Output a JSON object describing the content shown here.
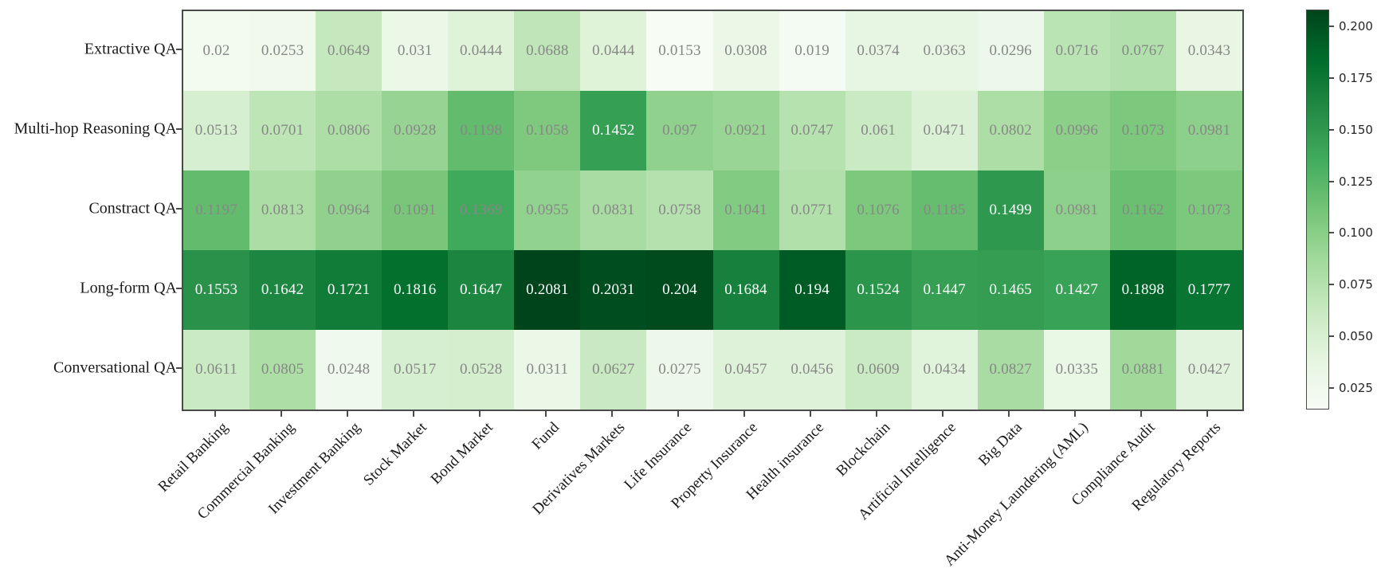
{
  "chart_data": {
    "type": "heatmap",
    "title": "",
    "rows": [
      "Extractive QA",
      "Multi-hop Reasoning QA",
      "Constract QA",
      "Long-form QA",
      "Conversational QA"
    ],
    "columns": [
      "Retail Banking",
      "Commercial Banking",
      "Investment Banking",
      "Stock Market",
      "Bond Market",
      "Fund",
      "Derivatives Markets",
      "Life Insurance",
      "Property Insurance",
      "Health insurance",
      "Blockchain",
      "Artificial Intelligence",
      "Big Data",
      "Anti-Money Laundering (AML)",
      "Compliance Audit",
      "Regulatory Reports"
    ],
    "values": [
      [
        0.02,
        0.0253,
        0.0649,
        0.031,
        0.0444,
        0.0688,
        0.0444,
        0.0153,
        0.0308,
        0.019,
        0.0374,
        0.0363,
        0.0296,
        0.0716,
        0.0767,
        0.0343
      ],
      [
        0.0513,
        0.0701,
        0.0806,
        0.0928,
        0.1198,
        0.1058,
        0.1452,
        0.097,
        0.0921,
        0.0747,
        0.061,
        0.0471,
        0.0802,
        0.0996,
        0.1073,
        0.0981
      ],
      [
        0.1197,
        0.0813,
        0.0964,
        0.1091,
        0.1369,
        0.0955,
        0.0831,
        0.0758,
        0.1041,
        0.0771,
        0.1076,
        0.1185,
        0.1499,
        0.0981,
        0.1162,
        0.1073
      ],
      [
        0.1553,
        0.1642,
        0.1721,
        0.1816,
        0.1647,
        0.2081,
        0.2031,
        0.204,
        0.1684,
        0.194,
        0.1524,
        0.1447,
        0.1465,
        0.1427,
        0.1898,
        0.1777
      ],
      [
        0.0611,
        0.0805,
        0.0248,
        0.0517,
        0.0528,
        0.0311,
        0.0627,
        0.0275,
        0.0457,
        0.0456,
        0.0609,
        0.0434,
        0.0827,
        0.0335,
        0.0881,
        0.0427
      ]
    ],
    "vmin": 0.0153,
    "vmax": 0.2081,
    "grid": false,
    "legend_position": "right-colorbar",
    "colormap": {
      "name": "Greens",
      "stops": [
        "#f7fcf5",
        "#e5f5e0",
        "#c7e9c0",
        "#a1d99b",
        "#74c476",
        "#41ab5d",
        "#238b45",
        "#006d2c",
        "#00441b"
      ]
    },
    "colorbar": {
      "tick_values": [
        0.2,
        0.175,
        0.15,
        0.125,
        0.1,
        0.075,
        0.05,
        0.025
      ],
      "tick_labels": [
        "0.200",
        "0.175",
        "0.150",
        "0.125",
        "0.100",
        "0.075",
        "0.050",
        "0.025"
      ]
    },
    "annotation_colors": {
      "on_light_cells": "#878787",
      "on_dark_cells": "#ffffff"
    },
    "axis_color": "#4a4a4a"
  }
}
